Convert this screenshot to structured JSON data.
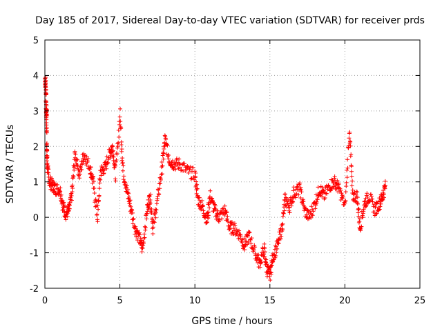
{
  "chart_data": {
    "type": "scatter",
    "title": "Day 185 of 2017, Sidereal Day-to-day VTEC variation (SDTVAR) for receiver prds",
    "xlabel": "GPS time / hours",
    "ylabel": "SDTVAR / TECUs",
    "xlim": [
      0,
      25
    ],
    "ylim": [
      -2,
      5
    ],
    "xticks": [
      0,
      5,
      10,
      15,
      20,
      25
    ],
    "yticks": [
      -2,
      -1,
      0,
      1,
      2,
      3,
      4,
      5
    ],
    "grid": true,
    "marker": "+",
    "color": "#ff0000",
    "series": [
      {
        "name": "SDTVAR",
        "approximate_trace": [
          [
            0.0,
            3.9
          ],
          [
            0.05,
            3.7
          ],
          [
            0.08,
            3.0
          ],
          [
            0.1,
            2.9
          ],
          [
            0.12,
            1.9
          ],
          [
            0.15,
            1.4
          ],
          [
            0.3,
            1.0
          ],
          [
            0.5,
            0.9
          ],
          [
            0.7,
            0.8
          ],
          [
            1.0,
            0.8
          ],
          [
            1.2,
            0.3
          ],
          [
            1.4,
            0.1
          ],
          [
            1.6,
            0.2
          ],
          [
            1.8,
            0.7
          ],
          [
            2.0,
            1.8
          ],
          [
            2.3,
            1.2
          ],
          [
            2.6,
            1.8
          ],
          [
            3.0,
            1.4
          ],
          [
            3.2,
            1.0
          ],
          [
            3.5,
            0.0
          ],
          [
            3.7,
            1.3
          ],
          [
            4.0,
            1.4
          ],
          [
            4.3,
            1.8
          ],
          [
            4.5,
            2.0
          ],
          [
            4.7,
            1.2
          ],
          [
            5.0,
            2.9
          ],
          [
            5.2,
            1.3
          ],
          [
            5.5,
            0.7
          ],
          [
            5.7,
            0.3
          ],
          [
            6.0,
            -0.3
          ],
          [
            6.3,
            -0.6
          ],
          [
            6.5,
            -0.9
          ],
          [
            6.8,
            0.2
          ],
          [
            7.0,
            0.6
          ],
          [
            7.2,
            -0.3
          ],
          [
            7.5,
            0.5
          ],
          [
            7.8,
            1.4
          ],
          [
            8.0,
            2.2
          ],
          [
            8.3,
            1.6
          ],
          [
            8.6,
            1.5
          ],
          [
            9.0,
            1.5
          ],
          [
            9.5,
            1.3
          ],
          [
            10.0,
            1.2
          ],
          [
            10.2,
            0.5
          ],
          [
            10.5,
            0.3
          ],
          [
            10.8,
            -0.1
          ],
          [
            11.0,
            0.6
          ],
          [
            11.3,
            0.2
          ],
          [
            11.6,
            0.0
          ],
          [
            12.0,
            0.2
          ],
          [
            12.3,
            -0.3
          ],
          [
            12.6,
            -0.3
          ],
          [
            13.0,
            -0.5
          ],
          [
            13.3,
            -0.8
          ],
          [
            13.6,
            -0.5
          ],
          [
            14.0,
            -1.0
          ],
          [
            14.3,
            -1.3
          ],
          [
            14.6,
            -0.9
          ],
          [
            14.8,
            -1.5
          ],
          [
            15.0,
            -1.6
          ],
          [
            15.2,
            -1.1
          ],
          [
            15.5,
            -0.8
          ],
          [
            15.8,
            -0.3
          ],
          [
            16.0,
            0.5
          ],
          [
            16.3,
            0.3
          ],
          [
            16.6,
            0.7
          ],
          [
            17.0,
            0.8
          ],
          [
            17.3,
            0.2
          ],
          [
            17.6,
            0.0
          ],
          [
            18.0,
            0.4
          ],
          [
            18.3,
            0.8
          ],
          [
            18.6,
            0.6
          ],
          [
            19.0,
            0.9
          ],
          [
            19.3,
            1.0
          ],
          [
            19.6,
            0.8
          ],
          [
            20.0,
            0.3
          ],
          [
            20.3,
            2.5
          ],
          [
            20.5,
            0.6
          ],
          [
            20.8,
            0.6
          ],
          [
            21.0,
            -0.3
          ],
          [
            21.3,
            0.4
          ],
          [
            21.6,
            0.6
          ],
          [
            22.0,
            0.2
          ],
          [
            22.3,
            0.4
          ],
          [
            22.5,
            0.6
          ],
          [
            22.7,
            0.9
          ]
        ]
      }
    ]
  }
}
